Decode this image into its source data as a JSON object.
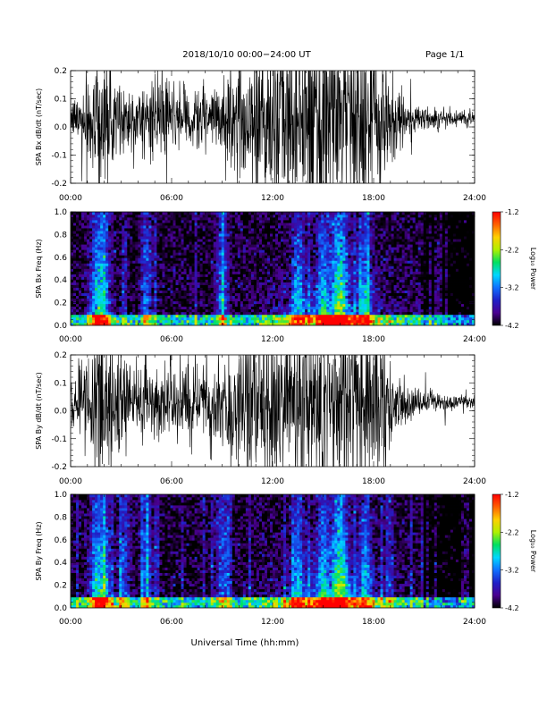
{
  "header": {
    "title": "2018/10/10   00:00−24:00 UT",
    "page": "Page 1/1"
  },
  "xlabel": "Universal Time (hh:mm)",
  "chart_data": [
    {
      "type": "line",
      "ylabel": "SPA Bx dB/dt (nT/sec)",
      "xlim_hours": [
        0,
        24
      ],
      "x_ticks": [
        "00:00",
        "06:00",
        "12:00",
        "18:00",
        "24:00"
      ],
      "ylim": [
        -0.2,
        0.2
      ],
      "y_ticks": [
        "0.2",
        "0.1",
        "0.0",
        "-0.1",
        "-0.2"
      ],
      "envelope": {
        "x_hours": [
          0,
          1,
          1.5,
          2,
          3,
          4,
          5,
          6,
          7,
          8,
          9,
          10,
          11,
          12,
          13,
          14,
          15,
          16,
          17,
          18,
          19,
          20,
          21,
          22,
          23,
          24
        ],
        "amplitude": [
          0.05,
          0.12,
          0.3,
          0.22,
          0.12,
          0.1,
          0.12,
          0.1,
          0.09,
          0.11,
          0.12,
          0.18,
          0.25,
          0.3,
          0.28,
          0.3,
          0.3,
          0.3,
          0.3,
          0.25,
          0.15,
          0.07,
          0.04,
          0.03,
          0.025,
          0.02
        ]
      }
    },
    {
      "type": "heatmap",
      "ylabel": "SPA Bx Freq (Hz)",
      "xlim_hours": [
        0,
        24
      ],
      "x_ticks": [
        "00:00",
        "06:00",
        "12:00",
        "18:00",
        "24:00"
      ],
      "ylim": [
        0.0,
        1.0
      ],
      "y_ticks": [
        "1.0",
        "0.8",
        "0.6",
        "0.4",
        "0.2",
        "0.0"
      ],
      "colorbar": {
        "label": "Log₁₀ Power",
        "range": [
          -4.2,
          -1.2
        ],
        "ticks": [
          "-1.2",
          "-2.2",
          "-3.2",
          "-4.2"
        ],
        "colors": [
          "#000000",
          "#4a0090",
          "#2020c8",
          "#1070ff",
          "#00d8ff",
          "#00e060",
          "#b0f000",
          "#ffd000",
          "#ff6000",
          "#ff0000"
        ]
      },
      "activity_hours": [
        1.5,
        2.0,
        4.5,
        9.0,
        13.5,
        15.0,
        15.8,
        16.2,
        17.5
      ],
      "low_freq_band_hz": 0.1
    },
    {
      "type": "line",
      "ylabel": "SPA By dB/dt (nT/sec)",
      "xlim_hours": [
        0,
        24
      ],
      "x_ticks": [
        "00:00",
        "06:00",
        "12:00",
        "18:00",
        "24:00"
      ],
      "ylim": [
        -0.2,
        0.2
      ],
      "y_ticks": [
        "0.2",
        "0.1",
        "0.0",
        "-0.1",
        "-0.2"
      ],
      "envelope": {
        "x_hours": [
          0,
          1,
          1.5,
          2,
          3,
          4,
          5,
          6,
          7,
          8,
          9,
          10,
          11,
          12,
          13,
          14,
          15,
          16,
          17,
          18,
          19,
          20,
          21,
          22,
          23,
          24
        ],
        "amplitude": [
          0.05,
          0.13,
          0.3,
          0.25,
          0.14,
          0.11,
          0.12,
          0.11,
          0.12,
          0.13,
          0.12,
          0.2,
          0.27,
          0.3,
          0.28,
          0.3,
          0.3,
          0.3,
          0.3,
          0.24,
          0.13,
          0.06,
          0.04,
          0.03,
          0.025,
          0.02
        ]
      }
    },
    {
      "type": "heatmap",
      "ylabel": "SPA By Freq (Hz)",
      "xlim_hours": [
        0,
        24
      ],
      "x_ticks": [
        "00:00",
        "06:00",
        "12:00",
        "18:00",
        "24:00"
      ],
      "ylim": [
        0.0,
        1.0
      ],
      "y_ticks": [
        "1.0",
        "0.8",
        "0.6",
        "0.4",
        "0.2",
        "0.0"
      ],
      "colorbar": {
        "label": "Log₁₀ Power",
        "range": [
          -4.2,
          -1.2
        ],
        "ticks": [
          "-1.2",
          "-2.2",
          "-3.2",
          "-4.2"
        ],
        "colors": [
          "#000000",
          "#4a0090",
          "#2020c8",
          "#1070ff",
          "#00d8ff",
          "#00e060",
          "#b0f000",
          "#ffd000",
          "#ff6000",
          "#ff0000"
        ]
      },
      "activity_hours": [
        1.5,
        2.0,
        3.2,
        4.5,
        9.0,
        13.5,
        15.0,
        15.8,
        16.2,
        17.5
      ],
      "low_freq_band_hz": 0.1
    }
  ]
}
